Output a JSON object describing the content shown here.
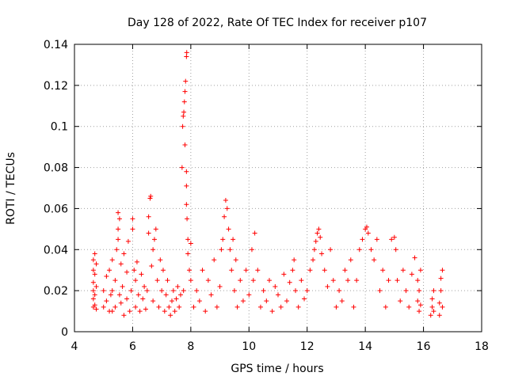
{
  "chart_data": {
    "type": "scatter",
    "title": "Day 128 of 2022, Rate Of TEC Index for receiver p107",
    "xlabel": "GPS time / hours",
    "ylabel": "ROTI / TECUs",
    "xlim": [
      4,
      18
    ],
    "ylim": [
      0,
      0.14
    ],
    "xticks": [
      4,
      6,
      8,
      10,
      12,
      14,
      16,
      18
    ],
    "yticks": [
      0,
      0.02,
      0.04,
      0.06,
      0.08,
      0.1,
      0.12,
      0.14
    ],
    "xtick_labels": [
      "4",
      "6",
      "8",
      "10",
      "12",
      "14",
      "16",
      "18"
    ],
    "ytick_labels": [
      "0",
      "0.02",
      "0.04",
      "0.06",
      "0.08",
      "0.1",
      "0.12",
      "0.14"
    ],
    "grid": true,
    "marker": "+",
    "marker_color": "#ff0000",
    "series": [
      {
        "name": "ROTI",
        "points": [
          [
            4.65,
            0.012
          ],
          [
            4.65,
            0.016
          ],
          [
            4.65,
            0.02
          ],
          [
            4.65,
            0.024
          ],
          [
            4.65,
            0.03
          ],
          [
            4.65,
            0.035
          ],
          [
            4.7,
            0.013
          ],
          [
            4.7,
            0.018
          ],
          [
            4.7,
            0.028
          ],
          [
            4.7,
            0.038
          ],
          [
            4.75,
            0.011
          ],
          [
            4.75,
            0.022
          ],
          [
            4.75,
            0.033
          ],
          [
            5.0,
            0.012
          ],
          [
            5.0,
            0.02
          ],
          [
            5.1,
            0.015
          ],
          [
            5.1,
            0.027
          ],
          [
            5.2,
            0.01
          ],
          [
            5.2,
            0.03
          ],
          [
            5.25,
            0.018
          ],
          [
            5.3,
            0.01
          ],
          [
            5.3,
            0.02
          ],
          [
            5.3,
            0.035
          ],
          [
            5.4,
            0.012
          ],
          [
            5.4,
            0.025
          ],
          [
            5.45,
            0.04
          ],
          [
            5.5,
            0.045
          ],
          [
            5.5,
            0.05
          ],
          [
            5.5,
            0.058
          ],
          [
            5.55,
            0.055
          ],
          [
            5.55,
            0.018
          ],
          [
            5.6,
            0.014
          ],
          [
            5.6,
            0.033
          ],
          [
            5.65,
            0.022
          ],
          [
            5.7,
            0.008
          ],
          [
            5.7,
            0.038
          ],
          [
            5.8,
            0.016
          ],
          [
            5.8,
            0.029
          ],
          [
            5.85,
            0.044
          ],
          [
            5.9,
            0.01
          ],
          [
            5.95,
            0.02
          ],
          [
            6.0,
            0.05
          ],
          [
            6.0,
            0.055
          ],
          [
            6.05,
            0.03
          ],
          [
            6.1,
            0.012
          ],
          [
            6.1,
            0.025
          ],
          [
            6.15,
            0.034
          ],
          [
            6.2,
            0.018
          ],
          [
            6.25,
            0.01
          ],
          [
            6.3,
            0.028
          ],
          [
            6.35,
            0.016
          ],
          [
            6.4,
            0.022
          ],
          [
            6.45,
            0.011
          ],
          [
            6.5,
            0.02
          ],
          [
            6.55,
            0.048
          ],
          [
            6.55,
            0.056
          ],
          [
            6.6,
            0.065
          ],
          [
            6.62,
            0.066
          ],
          [
            6.65,
            0.032
          ],
          [
            6.7,
            0.015
          ],
          [
            6.7,
            0.04
          ],
          [
            6.75,
            0.045
          ],
          [
            6.8,
            0.05
          ],
          [
            6.85,
            0.025
          ],
          [
            6.9,
            0.012
          ],
          [
            6.95,
            0.035
          ],
          [
            7.0,
            0.02
          ],
          [
            7.05,
            0.03
          ],
          [
            7.1,
            0.01
          ],
          [
            7.15,
            0.018
          ],
          [
            7.2,
            0.025
          ],
          [
            7.25,
            0.012
          ],
          [
            7.3,
            0.008
          ],
          [
            7.35,
            0.015
          ],
          [
            7.4,
            0.02
          ],
          [
            7.45,
            0.01
          ],
          [
            7.5,
            0.016
          ],
          [
            7.55,
            0.022
          ],
          [
            7.6,
            0.012
          ],
          [
            7.65,
            0.018
          ],
          [
            7.7,
            0.08
          ],
          [
            7.72,
            0.1
          ],
          [
            7.74,
            0.105
          ],
          [
            7.76,
            0.107
          ],
          [
            7.78,
            0.112
          ],
          [
            7.8,
            0.117
          ],
          [
            7.82,
            0.122
          ],
          [
            7.85,
            0.134
          ],
          [
            7.86,
            0.136
          ],
          [
            7.8,
            0.091
          ],
          [
            7.85,
            0.078
          ],
          [
            7.85,
            0.071
          ],
          [
            7.85,
            0.062
          ],
          [
            7.87,
            0.055
          ],
          [
            7.9,
            0.045
          ],
          [
            7.9,
            0.038
          ],
          [
            7.95,
            0.03
          ],
          [
            8.0,
            0.043
          ],
          [
            8.0,
            0.025
          ],
          [
            7.75,
            0.02
          ],
          [
            8.1,
            0.012
          ],
          [
            8.2,
            0.02
          ],
          [
            8.3,
            0.015
          ],
          [
            8.4,
            0.03
          ],
          [
            8.5,
            0.01
          ],
          [
            8.6,
            0.025
          ],
          [
            8.7,
            0.018
          ],
          [
            8.8,
            0.035
          ],
          [
            8.9,
            0.012
          ],
          [
            9.0,
            0.022
          ],
          [
            9.05,
            0.04
          ],
          [
            9.1,
            0.045
          ],
          [
            9.15,
            0.056
          ],
          [
            9.2,
            0.064
          ],
          [
            9.25,
            0.06
          ],
          [
            9.3,
            0.05
          ],
          [
            9.35,
            0.04
          ],
          [
            9.4,
            0.03
          ],
          [
            9.45,
            0.045
          ],
          [
            9.5,
            0.02
          ],
          [
            9.55,
            0.035
          ],
          [
            9.6,
            0.012
          ],
          [
            9.7,
            0.025
          ],
          [
            9.8,
            0.015
          ],
          [
            9.9,
            0.03
          ],
          [
            10.0,
            0.018
          ],
          [
            10.1,
            0.04
          ],
          [
            10.15,
            0.025
          ],
          [
            10.2,
            0.048
          ],
          [
            10.3,
            0.03
          ],
          [
            10.4,
            0.012
          ],
          [
            10.5,
            0.02
          ],
          [
            10.6,
            0.015
          ],
          [
            10.7,
            0.025
          ],
          [
            10.8,
            0.01
          ],
          [
            10.9,
            0.022
          ],
          [
            11.0,
            0.018
          ],
          [
            11.1,
            0.012
          ],
          [
            11.2,
            0.028
          ],
          [
            11.3,
            0.015
          ],
          [
            11.4,
            0.024
          ],
          [
            11.5,
            0.03
          ],
          [
            11.55,
            0.035
          ],
          [
            11.6,
            0.02
          ],
          [
            11.7,
            0.012
          ],
          [
            11.8,
            0.025
          ],
          [
            11.9,
            0.016
          ],
          [
            12.0,
            0.02
          ],
          [
            12.1,
            0.03
          ],
          [
            12.2,
            0.035
          ],
          [
            12.25,
            0.04
          ],
          [
            12.3,
            0.044
          ],
          [
            12.35,
            0.048
          ],
          [
            12.4,
            0.05
          ],
          [
            12.45,
            0.046
          ],
          [
            12.5,
            0.038
          ],
          [
            12.6,
            0.03
          ],
          [
            12.7,
            0.022
          ],
          [
            12.8,
            0.04
          ],
          [
            12.9,
            0.025
          ],
          [
            13.0,
            0.012
          ],
          [
            13.1,
            0.02
          ],
          [
            13.2,
            0.015
          ],
          [
            13.3,
            0.03
          ],
          [
            13.4,
            0.025
          ],
          [
            13.5,
            0.035
          ],
          [
            13.6,
            0.012
          ],
          [
            13.7,
            0.025
          ],
          [
            13.8,
            0.04
          ],
          [
            13.9,
            0.045
          ],
          [
            14.0,
            0.05
          ],
          [
            14.05,
            0.051
          ],
          [
            14.1,
            0.048
          ],
          [
            14.2,
            0.04
          ],
          [
            14.3,
            0.035
          ],
          [
            14.4,
            0.045
          ],
          [
            14.5,
            0.02
          ],
          [
            14.6,
            0.03
          ],
          [
            14.7,
            0.012
          ],
          [
            14.8,
            0.025
          ],
          [
            14.9,
            0.045
          ],
          [
            15.0,
            0.046
          ],
          [
            15.05,
            0.04
          ],
          [
            15.1,
            0.025
          ],
          [
            15.2,
            0.015
          ],
          [
            15.3,
            0.03
          ],
          [
            15.4,
            0.02
          ],
          [
            15.5,
            0.012
          ],
          [
            15.6,
            0.028
          ],
          [
            15.7,
            0.036
          ],
          [
            15.8,
            0.015
          ],
          [
            15.8,
            0.025
          ],
          [
            15.85,
            0.01
          ],
          [
            15.85,
            0.02
          ],
          [
            15.9,
            0.013
          ],
          [
            15.9,
            0.03
          ],
          [
            16.25,
            0.008
          ],
          [
            16.3,
            0.012
          ],
          [
            16.3,
            0.016
          ],
          [
            16.35,
            0.02
          ],
          [
            16.35,
            0.01
          ],
          [
            16.55,
            0.008
          ],
          [
            16.55,
            0.014
          ],
          [
            16.6,
            0.02
          ],
          [
            16.6,
            0.026
          ],
          [
            16.65,
            0.03
          ],
          [
            16.65,
            0.012
          ]
        ]
      }
    ]
  }
}
